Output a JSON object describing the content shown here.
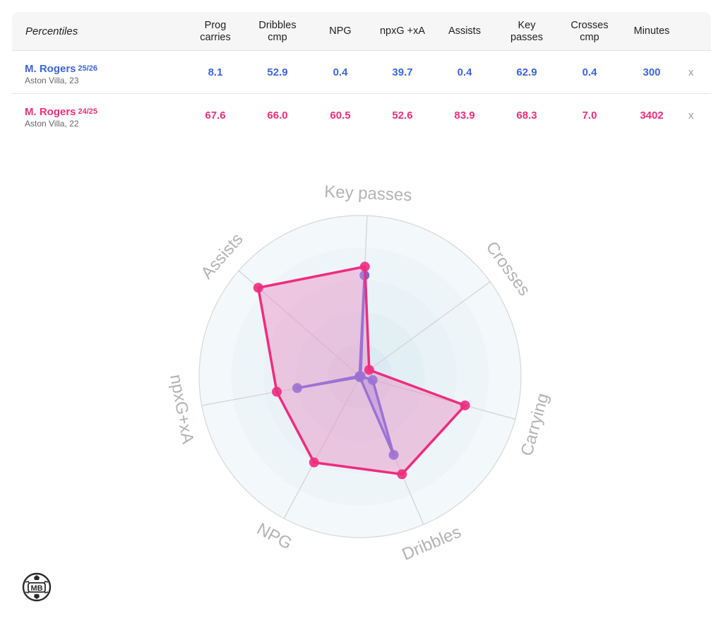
{
  "table": {
    "corner_label": "Percentiles",
    "columns": [
      {
        "line1": "Prog",
        "line2": "carries"
      },
      {
        "line1": "Dribbles",
        "line2": "cmp"
      },
      {
        "line1": "NPG",
        "line2": ""
      },
      {
        "line1": "npxG +xA",
        "line2": ""
      },
      {
        "line1": "Assists",
        "line2": ""
      },
      {
        "line1": "Key",
        "line2": "passes"
      },
      {
        "line1": "Crosses",
        "line2": "cmp"
      },
      {
        "line1": "Minutes",
        "line2": ""
      }
    ],
    "rows": [
      {
        "name": "M. Rogers",
        "season": "25/26",
        "club": "Aston Villa, 23",
        "values": [
          "8.1",
          "52.9",
          "0.4",
          "39.7",
          "0.4",
          "62.9",
          "0.4",
          "300"
        ],
        "remove_label": "x",
        "color": "#3d63e0"
      },
      {
        "name": "M. Rogers",
        "season": "24/25",
        "club": "Aston Villa, 22",
        "values": [
          "67.6",
          "66.0",
          "60.5",
          "52.6",
          "83.9",
          "68.3",
          "7.0",
          "3402"
        ],
        "remove_label": "x",
        "color": "#ea2e7a"
      }
    ]
  },
  "chart_data": {
    "type": "radar",
    "axes": [
      "Key passes",
      "Crosses",
      "Carrying",
      "Dribbles",
      "NPG",
      "npxG+xA",
      "Assists"
    ],
    "range": [
      0,
      100
    ],
    "rings": [
      20,
      40,
      60,
      80,
      100
    ],
    "series": [
      {
        "values": [
          62.9,
          0.4,
          8.1,
          52.9,
          0.4,
          39.7,
          0.4
        ],
        "color": "#5a5ce0",
        "fill": "#6b6ce8"
      },
      {
        "values": [
          68.3,
          7.0,
          67.6,
          66.0,
          60.5,
          52.6,
          83.9
        ],
        "color": "#ee2c7e",
        "fill": "#ea8fc4"
      }
    ]
  },
  "logo": {
    "text": "MB"
  }
}
